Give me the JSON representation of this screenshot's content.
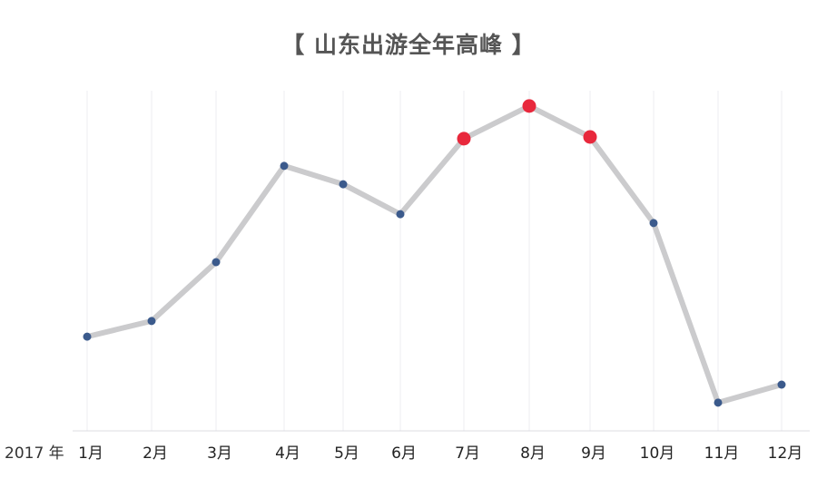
{
  "chart_data": {
    "type": "line",
    "title": "【 山东出游全年高峰 】",
    "xlabel": "2017 年",
    "ylabel": "",
    "categories": [
      "1月",
      "2月",
      "3月",
      "4月",
      "5月",
      "6月",
      "7月",
      "8月",
      "9月",
      "10月",
      "11月",
      "12月"
    ],
    "values": [
      27.7,
      32.3,
      49.6,
      77.9,
      72.5,
      63.7,
      85.9,
      95.5,
      86.4,
      61.1,
      8.3,
      13.6
    ],
    "highlighted": [
      "7月",
      "8月",
      "9月"
    ],
    "ylim": [
      0,
      100
    ],
    "grid": "vertical",
    "colors": {
      "line": "#cbcbcd",
      "point": "#3b5a8c",
      "highlight": "#e8283c",
      "grid": "#ececf0",
      "axis": "#dddde2"
    }
  }
}
